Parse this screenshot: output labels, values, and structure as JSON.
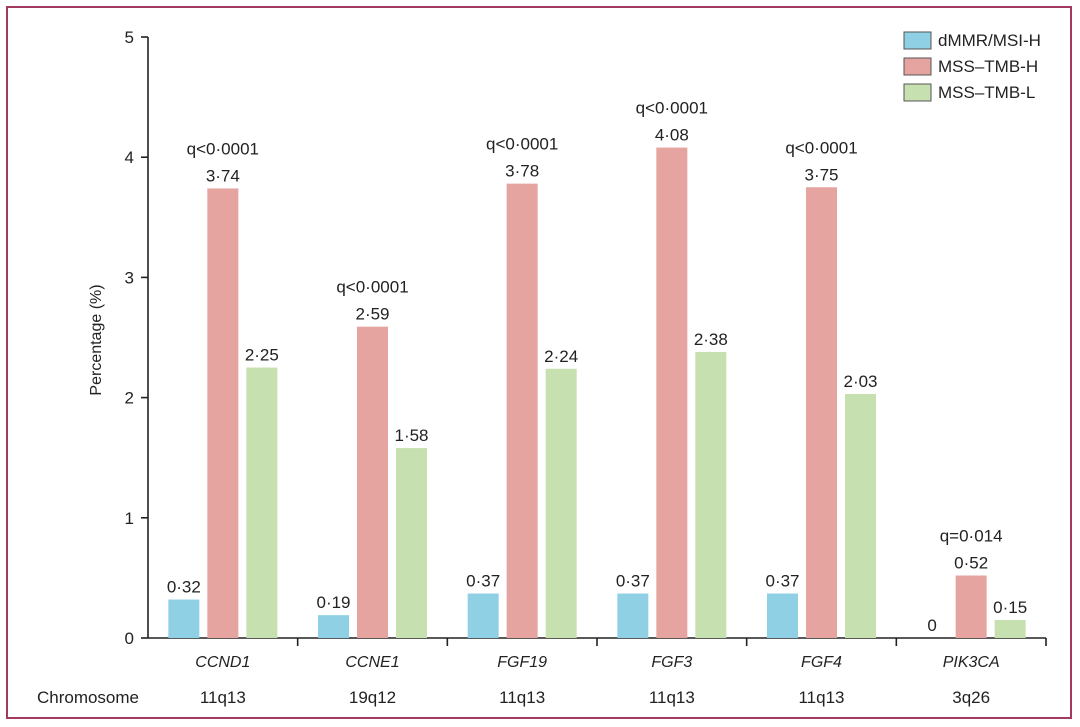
{
  "chart_data": {
    "type": "bar",
    "ylabel": "Percentage (%)",
    "ylim": [
      0,
      5
    ],
    "yticks": [
      "0",
      "1",
      "2",
      "3",
      "4",
      "5"
    ],
    "categories": [
      "CCND1",
      "CCNE1",
      "FGF19",
      "FGF3",
      "FGF4",
      "PIK3CA"
    ],
    "chromosome_label": "Chromosome",
    "chromosomes": [
      "11q13",
      "19q12",
      "11q13",
      "11q13",
      "11q13",
      "3q26"
    ],
    "q_values": [
      "q<0·0001",
      "q<0·0001",
      "q<0·0001",
      "q<0·0001",
      "q<0·0001",
      "q=0·014"
    ],
    "series": [
      {
        "name": "dMMR/MSI-H",
        "color": "#8fd0e4",
        "values": [
          0.32,
          0.19,
          0.37,
          0.37,
          0.37,
          0
        ],
        "labels": [
          "0·32",
          "0·19",
          "0·37",
          "0·37",
          "0·37",
          "0"
        ]
      },
      {
        "name": "MSS–TMB-H",
        "color": "#e5a4a0",
        "values": [
          3.74,
          2.59,
          3.78,
          4.08,
          3.75,
          0.52
        ],
        "labels": [
          "3·74",
          "2·59",
          "3·78",
          "4·08",
          "3·75",
          "0·52"
        ]
      },
      {
        "name": "MSS–TMB-L",
        "color": "#c6e0b0",
        "values": [
          2.25,
          1.58,
          2.24,
          2.38,
          2.03,
          0.15
        ],
        "labels": [
          "2·25",
          "1·58",
          "2·24",
          "2·38",
          "2·03",
          "0·15"
        ]
      }
    ],
    "legend_position": "top-right"
  }
}
